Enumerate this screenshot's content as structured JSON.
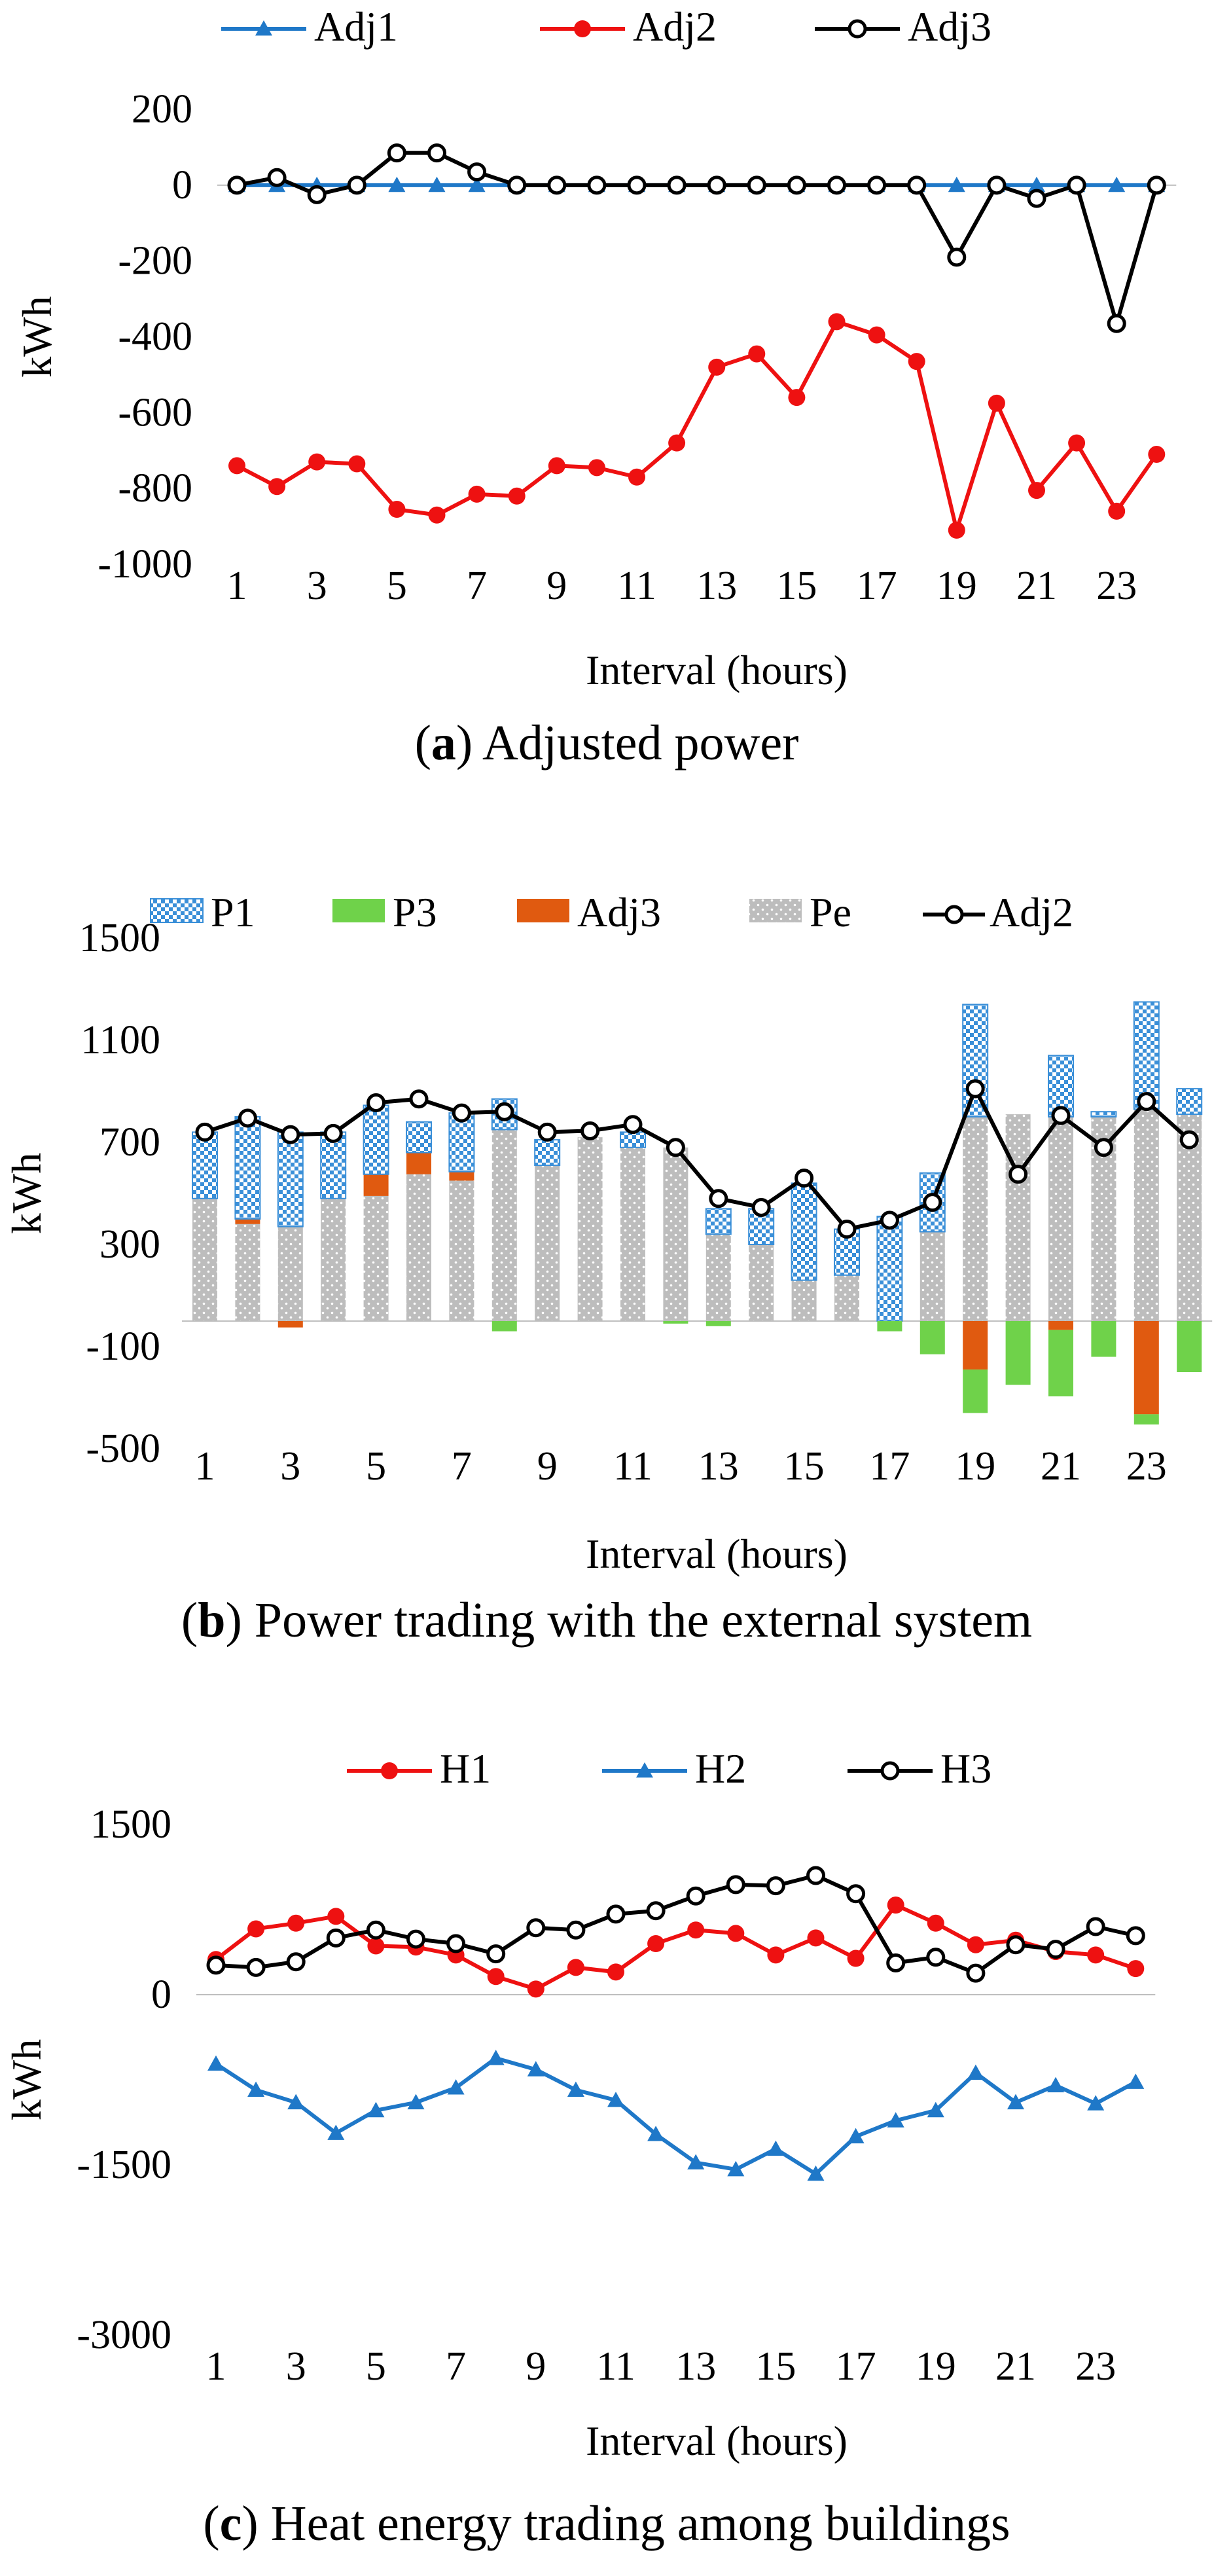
{
  "chart_data": [
    {
      "id": "a",
      "type": "line",
      "caption_letter": "a",
      "caption_text": ") Adjusted power",
      "xlabel": "Interval (hours)",
      "ylabel": "kWh",
      "ylim": [
        -1000,
        200
      ],
      "yticks": [
        "200",
        "0",
        "-200",
        "-400",
        "-600",
        "-800",
        "-1000"
      ],
      "ytick_values": [
        200,
        0,
        -200,
        -400,
        -600,
        -800,
        -1000
      ],
      "xticks": [
        "1",
        "3",
        "5",
        "7",
        "9",
        "11",
        "13",
        "15",
        "17",
        "19",
        "21",
        "23"
      ],
      "x": [
        1,
        2,
        3,
        4,
        5,
        6,
        7,
        8,
        9,
        10,
        11,
        12,
        13,
        14,
        15,
        16,
        17,
        18,
        19,
        20,
        21,
        22,
        23,
        24
      ],
      "series": [
        {
          "name": "Adj1",
          "color": "#1f78c8",
          "marker": "triangle",
          "values": [
            0,
            0,
            0,
            0,
            0,
            0,
            0,
            0,
            0,
            0,
            0,
            0,
            0,
            0,
            0,
            0,
            0,
            0,
            0,
            0,
            0,
            0,
            0,
            0
          ]
        },
        {
          "name": "Adj2",
          "color": "#ee1111",
          "marker": "circle",
          "values": [
            -740,
            -795,
            -730,
            -735,
            -855,
            -870,
            -815,
            -820,
            -740,
            -745,
            -770,
            -680,
            -480,
            -445,
            -560,
            -360,
            -395,
            -465,
            -910,
            -575,
            -805,
            -680,
            -860,
            -710
          ]
        },
        {
          "name": "Adj3",
          "color": "#000000",
          "marker": "open-circle",
          "values": [
            0,
            20,
            -25,
            0,
            85,
            85,
            35,
            0,
            0,
            0,
            0,
            0,
            0,
            0,
            0,
            0,
            0,
            0,
            -190,
            0,
            -35,
            0,
            -365,
            0
          ]
        }
      ]
    },
    {
      "id": "b",
      "type": "bar",
      "caption_letter": "b",
      "caption_text": ") Power trading with the external system",
      "xlabel": "Interval (hours)",
      "ylabel": "kWh",
      "ylim": [
        -500,
        1500
      ],
      "yticks": [
        "1500",
        "1100",
        "700",
        "300",
        "-100",
        "-500"
      ],
      "ytick_values": [
        1500,
        1100,
        700,
        300,
        -100,
        -500
      ],
      "xticks": [
        "1",
        "3",
        "5",
        "7",
        "9",
        "11",
        "13",
        "15",
        "17",
        "19",
        "21",
        "23"
      ],
      "categories": [
        1,
        2,
        3,
        4,
        5,
        6,
        7,
        8,
        9,
        10,
        11,
        12,
        13,
        14,
        15,
        16,
        17,
        18,
        19,
        20,
        21,
        22,
        23,
        24
      ],
      "series": [
        {
          "name": "P1",
          "color": "#3a8fd8",
          "pattern": "checker",
          "values": [
            260,
            400,
            370,
            260,
            270,
            120,
            230,
            120,
            100,
            0,
            60,
            0,
            100,
            140,
            380,
            180,
            410,
            230,
            440,
            0,
            240,
            20,
            420,
            100
          ]
        },
        {
          "name": "P3",
          "color": "#6fd24a",
          "pattern": "solid",
          "values": [
            0,
            0,
            0,
            0,
            0,
            0,
            0,
            -40,
            0,
            0,
            0,
            -10,
            -20,
            0,
            0,
            0,
            -40,
            -130,
            -170,
            -250,
            -260,
            -140,
            -40,
            -200
          ]
        },
        {
          "name": "Adj3",
          "color": "#e05a10",
          "pattern": "solid",
          "values": [
            0,
            20,
            -25,
            0,
            85,
            85,
            35,
            0,
            0,
            0,
            0,
            0,
            0,
            0,
            0,
            0,
            0,
            0,
            -190,
            0,
            -35,
            0,
            -365,
            0
          ]
        },
        {
          "name": "Pe",
          "color": "#bdbdbd",
          "pattern": "dotted",
          "values": [
            480,
            380,
            370,
            480,
            490,
            575,
            550,
            750,
            610,
            720,
            680,
            680,
            340,
            300,
            160,
            180,
            0,
            350,
            800,
            810,
            800,
            800,
            830,
            810
          ]
        },
        {
          "name": "Adj2",
          "color": "#000000",
          "marker": "open-circle",
          "pattern": "line",
          "values": [
            740,
            795,
            730,
            735,
            855,
            870,
            815,
            820,
            740,
            745,
            770,
            680,
            480,
            445,
            560,
            360,
            395,
            465,
            910,
            575,
            805,
            680,
            860,
            710
          ]
        }
      ]
    },
    {
      "id": "c",
      "type": "line",
      "caption_letter": "c",
      "caption_text": ") Heat energy trading among buildings",
      "xlabel": "Interval (hours)",
      "ylabel": "kWh",
      "ylim": [
        -3000,
        1500
      ],
      "yticks": [
        "1500",
        "0",
        "-1500",
        "-3000"
      ],
      "ytick_values": [
        1500,
        0,
        -1500,
        -3000
      ],
      "xticks": [
        "1",
        "3",
        "5",
        "7",
        "9",
        "11",
        "13",
        "15",
        "17",
        "19",
        "21",
        "23"
      ],
      "x": [
        1,
        2,
        3,
        4,
        5,
        6,
        7,
        8,
        9,
        10,
        11,
        12,
        13,
        14,
        15,
        16,
        17,
        18,
        19,
        20,
        21,
        22,
        23,
        24
      ],
      "series": [
        {
          "name": "H1",
          "color": "#ee1111",
          "marker": "circle",
          "values": [
            310,
            580,
            630,
            690,
            430,
            420,
            350,
            160,
            50,
            240,
            200,
            450,
            570,
            540,
            350,
            500,
            320,
            790,
            630,
            440,
            480,
            380,
            350,
            230
          ]
        },
        {
          "name": "H2",
          "color": "#1f78c8",
          "marker": "triangle",
          "values": [
            -610,
            -840,
            -950,
            -1220,
            -1020,
            -950,
            -820,
            -560,
            -660,
            -840,
            -930,
            -1230,
            -1480,
            -1540,
            -1360,
            -1580,
            -1250,
            -1110,
            -1020,
            -690,
            -950,
            -800,
            -960,
            -770
          ]
        },
        {
          "name": "H3",
          "color": "#000000",
          "marker": "open-circle",
          "values": [
            260,
            240,
            290,
            500,
            570,
            490,
            450,
            360,
            590,
            570,
            710,
            740,
            870,
            970,
            960,
            1050,
            890,
            280,
            330,
            190,
            440,
            400,
            600,
            520
          ]
        }
      ]
    }
  ]
}
